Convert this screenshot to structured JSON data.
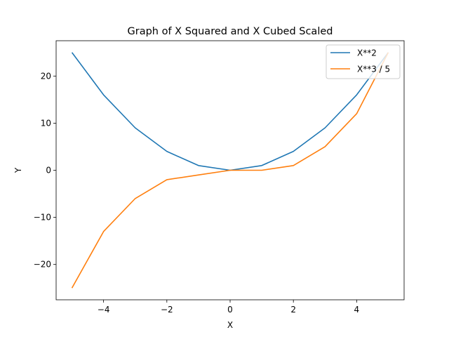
{
  "chart_data": {
    "type": "line",
    "title": "Graph of X Squared and X Cubed Scaled",
    "xlabel": "X",
    "ylabel": "Y",
    "xlim": [
      -5.5,
      5.5
    ],
    "ylim": [
      -27.5,
      27.5
    ],
    "xticks": [
      -4,
      -2,
      0,
      2,
      4
    ],
    "xtick_labels": [
      "−4",
      "−2",
      "0",
      "2",
      "4"
    ],
    "yticks": [
      -20,
      -10,
      0,
      10,
      20
    ],
    "ytick_labels": [
      "−20",
      "−10",
      "0",
      "10",
      "20"
    ],
    "grid": false,
    "legend_position": "top-right",
    "x": [
      -5,
      -4,
      -3,
      -2,
      -1,
      0,
      1,
      2,
      3,
      4,
      5
    ],
    "series": [
      {
        "name": "X**2",
        "color": "#1f77b4",
        "values": [
          25,
          16,
          9,
          4,
          1,
          0,
          1,
          4,
          9,
          16,
          25
        ]
      },
      {
        "name": "X**3 / 5",
        "color": "#ff7f0e",
        "values": [
          -25,
          -13,
          -6,
          -2,
          -1,
          0,
          0,
          1,
          5,
          12,
          25
        ]
      }
    ]
  }
}
